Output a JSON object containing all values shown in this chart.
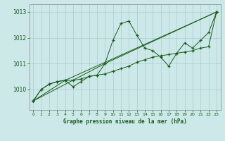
{
  "title": "Graphe pression niveau de la mer (hPa)",
  "background_color": "#cce8e8",
  "grid_color": "#aacccc",
  "line_color": "#1a5c1a",
  "xlim": [
    -0.5,
    23.5
  ],
  "ylim": [
    1009.2,
    1013.3
  ],
  "yticks": [
    1010,
    1011,
    1012,
    1013
  ],
  "xticks": [
    0,
    1,
    2,
    3,
    4,
    5,
    6,
    7,
    8,
    9,
    10,
    11,
    12,
    13,
    14,
    15,
    16,
    17,
    18,
    19,
    20,
    21,
    22,
    23
  ],
  "series1": [
    [
      0,
      1009.55
    ],
    [
      1,
      1010.0
    ],
    [
      2,
      1010.2
    ],
    [
      3,
      1010.3
    ],
    [
      4,
      1010.35
    ],
    [
      5,
      1010.1
    ],
    [
      6,
      1010.3
    ],
    [
      7,
      1010.5
    ],
    [
      8,
      1010.55
    ],
    [
      9,
      1011.0
    ],
    [
      10,
      1011.9
    ],
    [
      11,
      1012.55
    ],
    [
      12,
      1012.65
    ],
    [
      13,
      1012.1
    ],
    [
      14,
      1011.6
    ],
    [
      15,
      1011.5
    ],
    [
      16,
      1011.25
    ],
    [
      17,
      1010.9
    ],
    [
      18,
      1011.4
    ],
    [
      19,
      1011.8
    ],
    [
      20,
      1011.6
    ],
    [
      21,
      1011.9
    ],
    [
      22,
      1012.2
    ],
    [
      23,
      1013.0
    ]
  ],
  "series2": [
    [
      0,
      1009.55
    ],
    [
      1,
      1010.0
    ],
    [
      2,
      1010.2
    ],
    [
      3,
      1010.3
    ],
    [
      4,
      1010.35
    ],
    [
      5,
      1010.35
    ],
    [
      6,
      1010.4
    ],
    [
      7,
      1010.5
    ],
    [
      8,
      1010.55
    ],
    [
      9,
      1010.6
    ],
    [
      10,
      1010.7
    ],
    [
      11,
      1010.8
    ],
    [
      12,
      1010.9
    ],
    [
      13,
      1011.05
    ],
    [
      14,
      1011.15
    ],
    [
      15,
      1011.25
    ],
    [
      16,
      1011.3
    ],
    [
      17,
      1011.35
    ],
    [
      18,
      1011.4
    ],
    [
      19,
      1011.45
    ],
    [
      20,
      1011.5
    ],
    [
      21,
      1011.6
    ],
    [
      22,
      1011.65
    ],
    [
      23,
      1013.0
    ]
  ],
  "series3": [
    [
      0,
      1009.55
    ],
    [
      4,
      1010.35
    ],
    [
      23,
      1013.0
    ]
  ],
  "series4": [
    [
      0,
      1009.55
    ],
    [
      9,
      1011.0
    ],
    [
      23,
      1013.0
    ]
  ]
}
